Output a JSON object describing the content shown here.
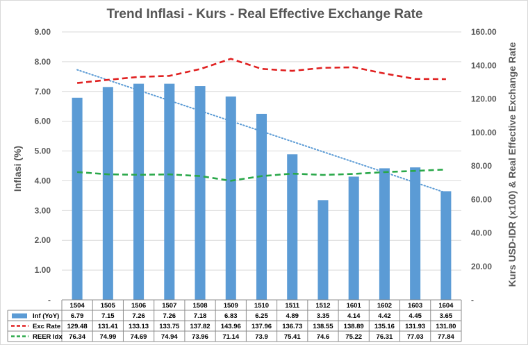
{
  "chart_data": {
    "type": "bar",
    "title": "Trend Inflasi - Kurs - Real Effective Exchange Rate",
    "ylabel": "Inflasi (%)",
    "y2label": "Kurs USD-IDR (x100) & Real Effective Exchange Rate",
    "ylim": [
      0,
      9
    ],
    "y2lim": [
      0,
      160
    ],
    "y_ticks": [
      "-",
      "1.00",
      "2.00",
      "3.00",
      "4.00",
      "5.00",
      "6.00",
      "7.00",
      "8.00",
      "9.00"
    ],
    "y2_ticks": [
      "-",
      "20.00",
      "40.00",
      "60.00",
      "80.00",
      "100.00",
      "120.00",
      "140.00",
      "160.00"
    ],
    "categories": [
      "1504",
      "1505",
      "1506",
      "1507",
      "1508",
      "1509",
      "1510",
      "1511",
      "1512",
      "1601",
      "1602",
      "1603",
      "1604"
    ],
    "series": [
      {
        "name": "Inf (YoY)",
        "type": "bar",
        "axis": "left",
        "color": "#5b9bd5",
        "values": [
          6.79,
          7.15,
          7.26,
          7.26,
          7.18,
          6.83,
          6.25,
          4.89,
          3.35,
          4.14,
          4.42,
          4.45,
          3.65
        ],
        "labels": [
          "6.79",
          "7.15",
          "7.26",
          "7.26",
          "7.18",
          "6.83",
          "6.25",
          "4.89",
          "3.35",
          "4.14",
          "4.42",
          "4.45",
          "3.65"
        ]
      },
      {
        "name": "Exc Rate",
        "type": "line",
        "style": "dashed",
        "axis": "right",
        "color": "#e02020",
        "values": [
          129.48,
          131.41,
          133.13,
          133.75,
          137.82,
          143.96,
          137.96,
          136.73,
          138.55,
          138.89,
          135.16,
          131.93,
          131.8
        ],
        "labels": [
          "129.48",
          "131.41",
          "133.13",
          "133.75",
          "137.82",
          "143.96",
          "137.96",
          "136.73",
          "138.55",
          "138.89",
          "135.16",
          "131.93",
          "131.80"
        ]
      },
      {
        "name": "REER Idx",
        "type": "line",
        "style": "dashed",
        "axis": "right",
        "color": "#2aa84a",
        "values": [
          76.34,
          74.99,
          74.69,
          74.94,
          73.96,
          71.14,
          73.9,
          75.41,
          74.6,
          75.22,
          76.31,
          77.03,
          77.84
        ],
        "labels": [
          "76.34",
          "74.99",
          "74.69",
          "74.94",
          "73.96",
          "71.14",
          "73.9",
          "75.41",
          "74.6",
          "75.22",
          "76.31",
          "77.03",
          "77.84"
        ]
      }
    ],
    "trendline": {
      "of": "Inf (YoY)",
      "type": "linear",
      "style": "dotted",
      "color": "#5b9bd5"
    },
    "data_table": true,
    "grid": true,
    "legend": "data-table"
  }
}
